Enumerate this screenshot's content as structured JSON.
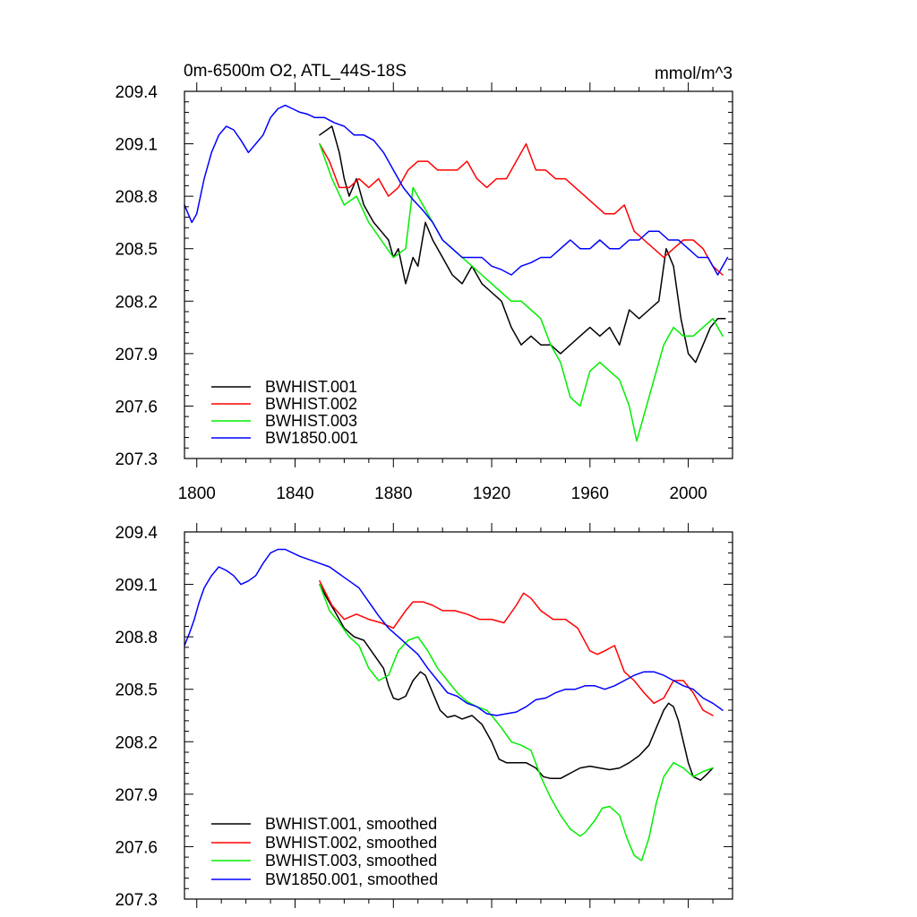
{
  "chart_data": [
    {
      "type": "line",
      "panel": "top",
      "title_left": "0m-6500m O2, ATL_44S-18S",
      "title_right": "mmol/m^3",
      "xlabel": "",
      "ylabel": "",
      "xlim": [
        1795,
        2018
      ],
      "ylim": [
        207.3,
        209.4
      ],
      "x_ticks": [
        1800,
        1840,
        1880,
        1920,
        1960,
        2000
      ],
      "x_tick_labels": [
        "1800",
        "1840",
        "1880",
        "1920",
        "1960",
        "2000"
      ],
      "y_ticks": [
        207.3,
        207.6,
        207.9,
        208.2,
        208.5,
        208.8,
        209.1,
        209.4
      ],
      "y_tick_labels": [
        "207.3",
        "207.6",
        "207.9",
        "208.2",
        "208.5",
        "208.8",
        "209.1",
        "209.4"
      ],
      "legend_position": "bottom-left",
      "series": [
        {
          "name": "BWHIST.001",
          "color": "#000000",
          "x": [
            1850,
            1855,
            1858,
            1860,
            1862,
            1865,
            1868,
            1870,
            1872,
            1875,
            1878,
            1880,
            1882,
            1885,
            1888,
            1890,
            1893,
            1896,
            1900,
            1904,
            1908,
            1912,
            1916,
            1920,
            1924,
            1928,
            1932,
            1936,
            1940,
            1944,
            1948,
            1952,
            1956,
            1960,
            1964,
            1968,
            1972,
            1976,
            1980,
            1984,
            1988,
            1991,
            1994,
            1997,
            2000,
            2003,
            2006,
            2009,
            2012,
            2015
          ],
          "y": [
            209.15,
            209.2,
            209.05,
            208.9,
            208.8,
            208.9,
            208.75,
            208.7,
            208.65,
            208.6,
            208.55,
            208.45,
            208.5,
            208.3,
            208.45,
            208.4,
            208.65,
            208.55,
            208.45,
            208.35,
            208.3,
            208.4,
            208.3,
            208.25,
            208.2,
            208.05,
            207.95,
            208.0,
            207.95,
            207.95,
            207.9,
            207.95,
            208.0,
            208.05,
            208.0,
            208.05,
            207.95,
            208.15,
            208.1,
            208.15,
            208.2,
            208.5,
            208.4,
            208.1,
            207.9,
            207.85,
            207.95,
            208.05,
            208.1,
            208.1
          ]
        },
        {
          "name": "BWHIST.002",
          "color": "#ff0000",
          "x": [
            1850,
            1854,
            1858,
            1862,
            1866,
            1870,
            1874,
            1878,
            1882,
            1886,
            1890,
            1894,
            1898,
            1902,
            1906,
            1910,
            1914,
            1918,
            1922,
            1926,
            1930,
            1934,
            1938,
            1942,
            1946,
            1950,
            1954,
            1958,
            1962,
            1966,
            1970,
            1974,
            1978,
            1982,
            1986,
            1990,
            1994,
            1998,
            2002,
            2006,
            2010,
            2014
          ],
          "y": [
            209.1,
            209.0,
            208.85,
            208.85,
            208.9,
            208.85,
            208.9,
            208.8,
            208.85,
            208.95,
            209.0,
            209.0,
            208.95,
            208.95,
            208.95,
            209.0,
            208.9,
            208.85,
            208.9,
            208.9,
            209.0,
            209.1,
            208.95,
            208.95,
            208.9,
            208.9,
            208.85,
            208.8,
            208.75,
            208.7,
            208.7,
            208.75,
            208.6,
            208.55,
            208.5,
            208.45,
            208.5,
            208.55,
            208.55,
            208.5,
            208.4,
            208.35
          ]
        },
        {
          "name": "BWHIST.003",
          "color": "#00ee00",
          "x": [
            1850,
            1855,
            1860,
            1865,
            1870,
            1875,
            1880,
            1885,
            1888,
            1892,
            1896,
            1900,
            1904,
            1908,
            1912,
            1916,
            1920,
            1924,
            1928,
            1932,
            1936,
            1940,
            1944,
            1948,
            1952,
            1956,
            1960,
            1964,
            1968,
            1972,
            1976,
            1979,
            1982,
            1986,
            1990,
            1994,
            1998,
            2002,
            2006,
            2010,
            2014
          ],
          "y": [
            209.1,
            208.9,
            208.75,
            208.8,
            208.65,
            208.55,
            208.45,
            208.5,
            208.85,
            208.75,
            208.65,
            208.55,
            208.5,
            208.45,
            208.4,
            208.35,
            208.3,
            208.25,
            208.2,
            208.2,
            208.15,
            208.1,
            207.95,
            207.85,
            207.65,
            207.6,
            207.8,
            207.85,
            207.8,
            207.75,
            207.6,
            207.4,
            207.55,
            207.75,
            207.95,
            208.05,
            208.0,
            208.0,
            208.05,
            208.1,
            208.0
          ]
        },
        {
          "name": "BW1850.001",
          "color": "#0000ff",
          "x": [
            1795,
            1798,
            1800,
            1803,
            1806,
            1809,
            1812,
            1815,
            1818,
            1821,
            1824,
            1827,
            1830,
            1833,
            1836,
            1839,
            1842,
            1845,
            1848,
            1852,
            1856,
            1860,
            1864,
            1868,
            1872,
            1876,
            1880,
            1884,
            1888,
            1892,
            1896,
            1900,
            1904,
            1908,
            1912,
            1916,
            1920,
            1924,
            1928,
            1932,
            1936,
            1940,
            1944,
            1948,
            1952,
            1956,
            1960,
            1964,
            1968,
            1972,
            1976,
            1980,
            1984,
            1988,
            1992,
            1996,
            2000,
            2004,
            2008,
            2012,
            2016
          ],
          "y": [
            208.75,
            208.65,
            208.7,
            208.9,
            209.05,
            209.15,
            209.2,
            209.18,
            209.12,
            209.05,
            209.1,
            209.15,
            209.25,
            209.3,
            209.32,
            209.3,
            209.28,
            209.27,
            209.25,
            209.25,
            209.22,
            209.2,
            209.15,
            209.15,
            209.12,
            209.05,
            208.95,
            208.85,
            208.78,
            208.72,
            208.65,
            208.55,
            208.5,
            208.45,
            208.45,
            208.45,
            208.4,
            208.38,
            208.35,
            208.4,
            208.42,
            208.45,
            208.45,
            208.5,
            208.55,
            208.5,
            208.5,
            208.55,
            208.5,
            208.5,
            208.55,
            208.55,
            208.6,
            208.6,
            208.55,
            208.55,
            208.5,
            208.45,
            208.45,
            208.35,
            208.45
          ]
        }
      ]
    },
    {
      "type": "line",
      "panel": "bottom",
      "xlabel": "",
      "ylabel": "",
      "xlim": [
        1795,
        2018
      ],
      "ylim": [
        207.3,
        209.4
      ],
      "x_ticks": [
        1800,
        1840,
        1880,
        1920,
        1960,
        2000
      ],
      "y_ticks": [
        207.3,
        207.6,
        207.9,
        208.2,
        208.5,
        208.8,
        209.1,
        209.4
      ],
      "y_tick_labels": [
        "207.3",
        "207.6",
        "207.9",
        "208.2",
        "208.5",
        "208.8",
        "209.1",
        "209.4"
      ],
      "legend_position": "bottom-left",
      "series": [
        {
          "name": "BWHIST.001, smoothed",
          "color": "#000000",
          "x": [
            1850,
            1853,
            1856,
            1860,
            1864,
            1868,
            1872,
            1876,
            1878,
            1880,
            1882,
            1885,
            1888,
            1891,
            1893,
            1896,
            1899,
            1902,
            1905,
            1908,
            1912,
            1916,
            1920,
            1923,
            1926,
            1930,
            1934,
            1938,
            1941,
            1944,
            1948,
            1952,
            1956,
            1960,
            1964,
            1968,
            1972,
            1976,
            1980,
            1984,
            1987,
            1990,
            1992,
            1994,
            1996,
            1998,
            2000,
            2002,
            2005,
            2008,
            2010
          ],
          "y": [
            209.1,
            209.02,
            208.95,
            208.85,
            208.8,
            208.78,
            208.7,
            208.62,
            208.52,
            208.45,
            208.44,
            208.46,
            208.55,
            208.6,
            208.58,
            208.48,
            208.38,
            208.34,
            208.35,
            208.33,
            208.35,
            208.3,
            208.2,
            208.1,
            208.08,
            208.08,
            208.08,
            208.05,
            208.0,
            207.99,
            207.99,
            208.02,
            208.05,
            208.06,
            208.05,
            208.04,
            208.05,
            208.08,
            208.12,
            208.18,
            208.28,
            208.38,
            208.42,
            208.4,
            208.32,
            208.2,
            208.08,
            208.0,
            207.98,
            208.02,
            208.05
          ]
        },
        {
          "name": "BWHIST.002, smoothed",
          "color": "#ff0000",
          "x": [
            1850,
            1855,
            1860,
            1865,
            1870,
            1875,
            1880,
            1885,
            1888,
            1892,
            1896,
            1900,
            1905,
            1910,
            1915,
            1920,
            1925,
            1930,
            1933,
            1936,
            1940,
            1945,
            1950,
            1955,
            1960,
            1963,
            1966,
            1970,
            1974,
            1978,
            1982,
            1986,
            1990,
            1994,
            1998,
            2002,
            2006,
            2010
          ],
          "y": [
            209.12,
            208.98,
            208.9,
            208.93,
            208.9,
            208.88,
            208.85,
            208.95,
            209.0,
            209.0,
            208.98,
            208.95,
            208.95,
            208.93,
            208.9,
            208.9,
            208.88,
            208.98,
            209.05,
            209.02,
            208.95,
            208.9,
            208.9,
            208.85,
            208.72,
            208.7,
            208.72,
            208.75,
            208.6,
            208.55,
            208.48,
            208.42,
            208.45,
            208.55,
            208.55,
            208.48,
            208.38,
            208.35
          ]
        },
        {
          "name": "BWHIST.003, smoothed",
          "color": "#00ee00",
          "x": [
            1850,
            1854,
            1858,
            1862,
            1866,
            1870,
            1874,
            1878,
            1882,
            1886,
            1890,
            1894,
            1898,
            1902,
            1906,
            1910,
            1914,
            1918,
            1920,
            1924,
            1928,
            1932,
            1936,
            1940,
            1944,
            1948,
            1952,
            1956,
            1958,
            1962,
            1965,
            1968,
            1972,
            1975,
            1978,
            1981,
            1984,
            1987,
            1990,
            1994,
            1998,
            2002,
            2006,
            2010
          ],
          "y": [
            209.1,
            208.95,
            208.88,
            208.8,
            208.75,
            208.62,
            208.55,
            208.58,
            208.72,
            208.78,
            208.8,
            208.72,
            208.62,
            208.55,
            208.48,
            208.43,
            208.4,
            208.38,
            208.35,
            208.28,
            208.2,
            208.18,
            208.15,
            208.0,
            207.88,
            207.78,
            207.7,
            207.66,
            207.68,
            207.75,
            207.82,
            207.83,
            207.78,
            207.65,
            207.55,
            207.52,
            207.65,
            207.85,
            208.0,
            208.08,
            208.05,
            208.0,
            208.03,
            208.05
          ]
        },
        {
          "name": "BW1850.001, smoothed",
          "color": "#0000ff",
          "x": [
            1795,
            1797,
            1799,
            1801,
            1803,
            1806,
            1809,
            1812,
            1815,
            1818,
            1821,
            1824,
            1827,
            1830,
            1833,
            1836,
            1839,
            1842,
            1846,
            1850,
            1854,
            1858,
            1862,
            1866,
            1870,
            1874,
            1878,
            1882,
            1886,
            1890,
            1894,
            1898,
            1902,
            1906,
            1910,
            1914,
            1918,
            1922,
            1926,
            1930,
            1934,
            1938,
            1942,
            1946,
            1950,
            1954,
            1958,
            1962,
            1966,
            1970,
            1974,
            1978,
            1982,
            1986,
            1990,
            1994,
            1998,
            2002,
            2006,
            2010,
            2014
          ],
          "y": [
            208.75,
            208.82,
            208.9,
            209.0,
            209.08,
            209.15,
            209.2,
            209.18,
            209.15,
            209.1,
            209.12,
            209.15,
            209.22,
            209.28,
            209.3,
            209.3,
            209.28,
            209.26,
            209.24,
            209.22,
            209.2,
            209.16,
            209.12,
            209.08,
            209.0,
            208.92,
            208.85,
            208.8,
            208.75,
            208.7,
            208.62,
            208.55,
            208.48,
            208.46,
            208.42,
            208.4,
            208.36,
            208.35,
            208.36,
            208.37,
            208.4,
            208.44,
            208.45,
            208.48,
            208.5,
            208.5,
            208.52,
            208.52,
            208.5,
            208.52,
            208.55,
            208.58,
            208.6,
            208.6,
            208.58,
            208.55,
            208.52,
            208.5,
            208.45,
            208.42,
            208.38
          ]
        }
      ]
    }
  ]
}
